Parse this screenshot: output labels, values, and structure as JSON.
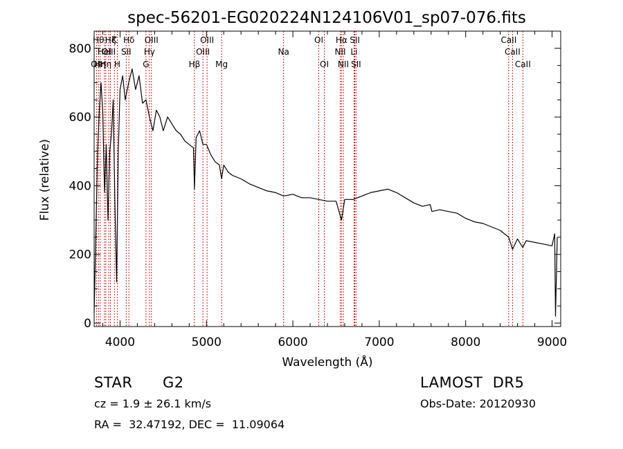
{
  "chart_data": {
    "type": "line",
    "title": "spec-56201-EG020224N124106V01_sp07-076.fits",
    "xlabel": "Wavelength (Å)",
    "ylabel": "Flux (relative)",
    "xlim": [
      3700,
      9100
    ],
    "ylim": [
      -10,
      850
    ],
    "x_ticks": [
      4000,
      5000,
      6000,
      7000,
      8000,
      9000
    ],
    "y_ticks": [
      0,
      200,
      400,
      600,
      800
    ],
    "grid": false,
    "series": [
      {
        "color": "#000000",
        "x": [
          3700,
          3720,
          3740,
          3760,
          3780,
          3800,
          3820,
          3840,
          3860,
          3880,
          3900,
          3920,
          3940,
          3960,
          3980,
          4000,
          4030,
          4060,
          4100,
          4140,
          4180,
          4220,
          4260,
          4300,
          4340,
          4380,
          4420,
          4460,
          4500,
          4550,
          4600,
          4650,
          4700,
          4750,
          4800,
          4850,
          4861,
          4880,
          4920,
          4960,
          5000,
          5050,
          5100,
          5150,
          5175,
          5200,
          5250,
          5300,
          5400,
          5500,
          5600,
          5700,
          5800,
          5893,
          6000,
          6100,
          6200,
          6300,
          6400,
          6500,
          6563,
          6600,
          6700,
          6800,
          6900,
          7000,
          7100,
          7200,
          7300,
          7400,
          7500,
          7590,
          7610,
          7700,
          7800,
          7900,
          8000,
          8100,
          8200,
          8300,
          8400,
          8498,
          8542,
          8600,
          8662,
          8700,
          8800,
          8900,
          9000,
          9030,
          9040,
          9060
        ],
        "y": [
          30,
          260,
          500,
          620,
          700,
          610,
          380,
          520,
          300,
          500,
          550,
          650,
          350,
          120,
          500,
          680,
          720,
          650,
          700,
          740,
          680,
          720,
          640,
          650,
          600,
          560,
          620,
          600,
          560,
          600,
          580,
          560,
          550,
          530,
          520,
          510,
          390,
          540,
          560,
          520,
          520,
          490,
          470,
          460,
          420,
          460,
          440,
          430,
          420,
          405,
          395,
          385,
          380,
          370,
          375,
          365,
          365,
          360,
          355,
          355,
          300,
          360,
          360,
          370,
          380,
          385,
          390,
          380,
          365,
          350,
          340,
          345,
          325,
          330,
          325,
          320,
          305,
          295,
          290,
          280,
          270,
          250,
          215,
          245,
          220,
          240,
          235,
          230,
          225,
          260,
          20,
          250
        ]
      }
    ],
    "lines": [
      {
        "x": 3727,
        "label": "OII",
        "row": 3
      },
      {
        "x": 3750,
        "label": "Hθ",
        "row": 1
      },
      {
        "x": 3770,
        "label": "Hη",
        "row": 3
      },
      {
        "x": 3819,
        "label": "HeI",
        "row": 2
      },
      {
        "x": 3835,
        "label": "Hη",
        "row": 3
      },
      {
        "x": 3869,
        "label": "OIII",
        "row": 2
      },
      {
        "x": 3889,
        "label": "Hζ",
        "row": 1
      },
      {
        "x": 3934,
        "label": "K",
        "row": 1
      },
      {
        "x": 3968,
        "label": "H",
        "row": 3
      },
      {
        "x": 4071,
        "label": "SII",
        "row": 2
      },
      {
        "x": 4102,
        "label": "Hδ",
        "row": 1
      },
      {
        "x": 4300,
        "label": "G",
        "row": 3
      },
      {
        "x": 4340,
        "label": "Hγ",
        "row": 2
      },
      {
        "x": 4363,
        "label": "OIII",
        "row": 1
      },
      {
        "x": 4861,
        "label": "Hβ",
        "row": 3
      },
      {
        "x": 4959,
        "label": "OIII",
        "row": 2
      },
      {
        "x": 5007,
        "label": "OIII",
        "row": 1
      },
      {
        "x": 5175,
        "label": "Mg",
        "row": 3
      },
      {
        "x": 5893,
        "label": "Na",
        "row": 2
      },
      {
        "x": 6300,
        "label": "OI",
        "row": 1
      },
      {
        "x": 6364,
        "label": "OI",
        "row": 3
      },
      {
        "x": 6548,
        "label": "NII",
        "row": 2
      },
      {
        "x": 6563,
        "label": "Hα",
        "row": 1
      },
      {
        "x": 6584,
        "label": "NII",
        "row": 3
      },
      {
        "x": 6708,
        "label": "Li",
        "row": 2
      },
      {
        "x": 6717,
        "label": "SII",
        "row": 1
      },
      {
        "x": 6731,
        "label": "SII",
        "row": 3
      },
      {
        "x": 8498,
        "label": "CaII",
        "row": 1
      },
      {
        "x": 8542,
        "label": "CaII",
        "row": 2
      },
      {
        "x": 8662,
        "label": "CaII",
        "row": 3
      }
    ]
  },
  "info": {
    "object_class": "STAR",
    "subclass": "G2",
    "survey": "LAMOST  DR5",
    "redshift": "cz = 1.9 ± 26.1 km/s",
    "obs_date": "Obs-Date: 20120930",
    "coords": "RA =  32.47192, DEC =  11.09064"
  }
}
